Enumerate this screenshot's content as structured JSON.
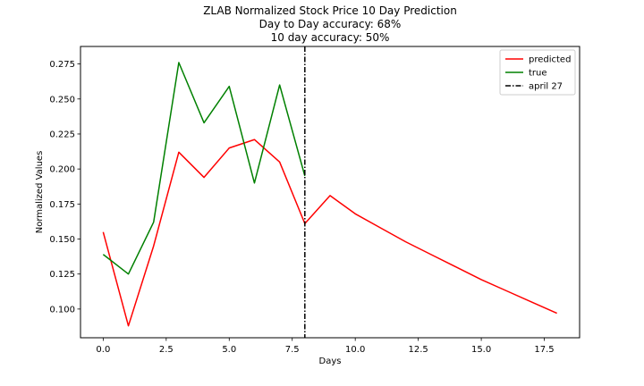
{
  "chart_data": {
    "type": "line",
    "title": [
      "ZLAB Normalized Stock Price 10 Day Prediction",
      "Day to Day accuracy: 68%",
      "10 day accuracy: 50%"
    ],
    "xlabel": "Days",
    "ylabel": "Normalized Values",
    "xlim": [
      -0.9,
      18.9
    ],
    "ylim": [
      0.0795,
      0.2875
    ],
    "xticks": [
      0.0,
      2.5,
      5.0,
      7.5,
      10.0,
      12.5,
      15.0,
      17.5
    ],
    "xtick_labels": [
      "0.0",
      "2.5",
      "5.0",
      "7.5",
      "10.0",
      "12.5",
      "15.0",
      "17.5"
    ],
    "yticks": [
      0.1,
      0.125,
      0.15,
      0.175,
      0.2,
      0.225,
      0.25,
      0.275
    ],
    "ytick_labels": [
      "0.100",
      "0.125",
      "0.150",
      "0.175",
      "0.200",
      "0.225",
      "0.250",
      "0.275"
    ],
    "grid": false,
    "legend_position": "top-right",
    "series": [
      {
        "name": "predicted",
        "color": "#ff0000",
        "style": "solid",
        "x": [
          0,
          1,
          2,
          3,
          4,
          5,
          6,
          7,
          8,
          9,
          10,
          11,
          12,
          13,
          14,
          15,
          16,
          17,
          18
        ],
        "y": [
          0.155,
          0.088,
          0.145,
          0.212,
          0.194,
          0.215,
          0.221,
          0.205,
          0.161,
          0.181,
          0.168,
          0.158,
          0.148,
          0.139,
          0.13,
          0.121,
          0.113,
          0.105,
          0.097
        ]
      },
      {
        "name": "true",
        "color": "#008000",
        "style": "solid",
        "x": [
          0,
          1,
          2,
          3,
          4,
          5,
          6,
          7,
          8
        ],
        "y": [
          0.139,
          0.125,
          0.162,
          0.276,
          0.233,
          0.259,
          0.19,
          0.26,
          0.195
        ]
      }
    ],
    "vline": {
      "name": "april 27",
      "x": 8,
      "color": "#000000",
      "style": "dashdot"
    }
  }
}
